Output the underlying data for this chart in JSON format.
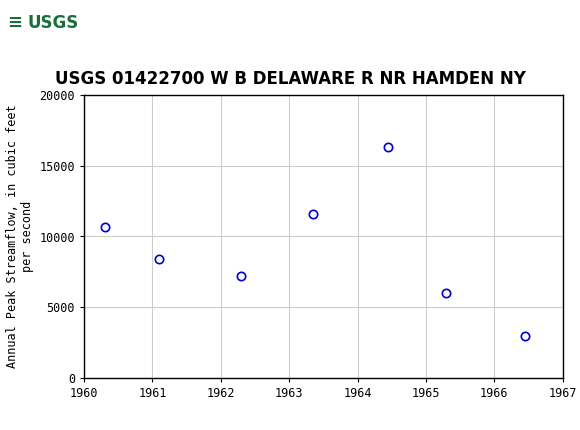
{
  "title": "USGS 01422700 W B DELAWARE R NR HAMDEN NY",
  "ylabel": "Annual Peak Streamflow, in cubic feet\nper second",
  "x_data": [
    1960.3,
    1961.1,
    1962.3,
    1963.35,
    1964.45,
    1965.3,
    1966.45
  ],
  "y_data": [
    10700,
    8400,
    7200,
    11600,
    16300,
    6000,
    3000
  ],
  "xlim": [
    1960,
    1967
  ],
  "ylim": [
    0,
    20000
  ],
  "xticks": [
    1960,
    1961,
    1962,
    1963,
    1964,
    1965,
    1966,
    1967
  ],
  "yticks": [
    0,
    5000,
    10000,
    15000,
    20000
  ],
  "marker_color": "#0000CC",
  "marker_size": 6,
  "header_color": "#1a6e3c",
  "background_color": "#ffffff",
  "plot_bg_color": "#ffffff",
  "grid_color": "#cccccc",
  "title_fontsize": 12,
  "label_fontsize": 8.5,
  "tick_fontsize": 8.5
}
